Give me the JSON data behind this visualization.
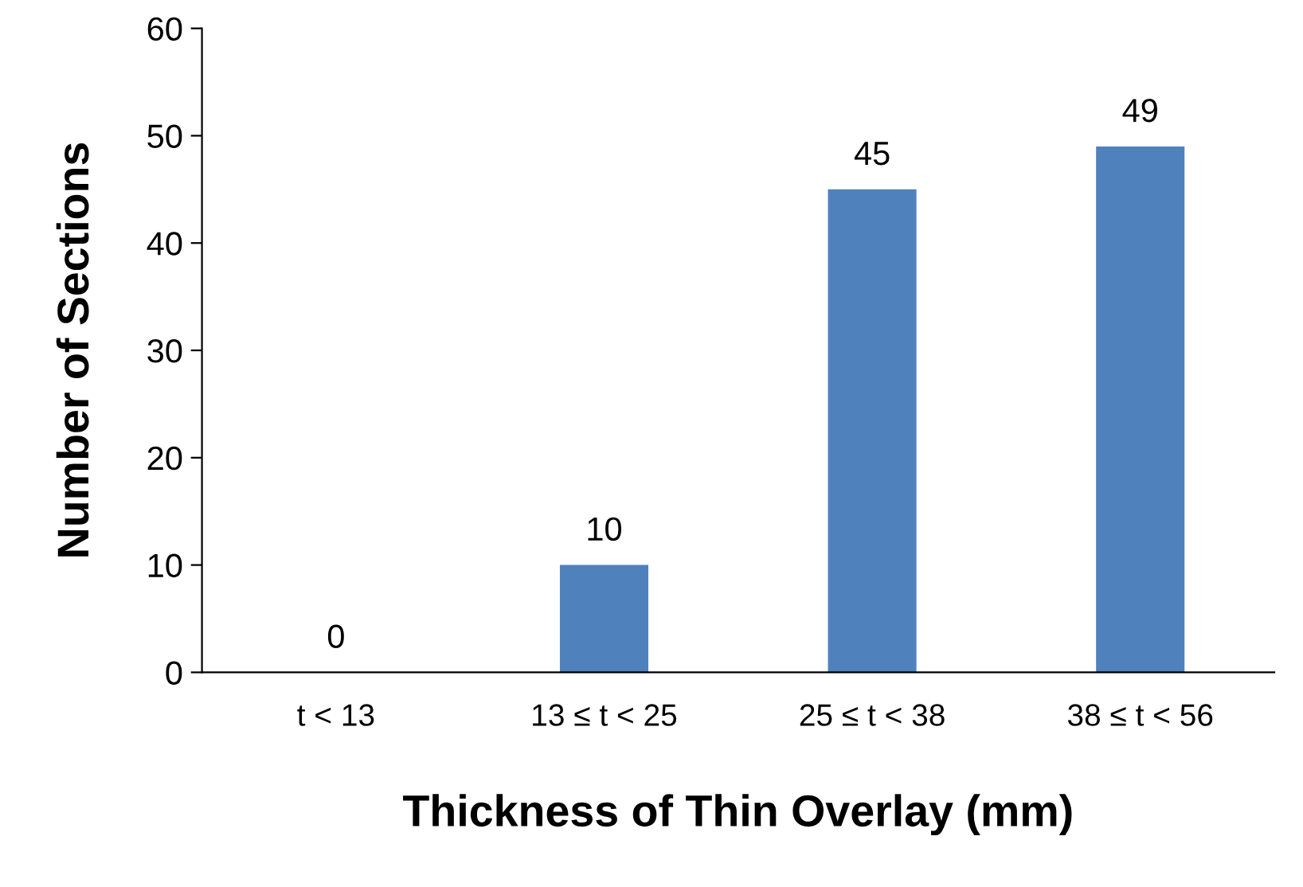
{
  "chart_data": {
    "type": "bar",
    "xlabel": "Thickness of Thin Overlay (mm)",
    "ylabel": "Number of Sections",
    "categories": [
      "t < 13",
      "13 ≤ t < 25",
      "25 ≤ t < 38",
      "38 ≤ t < 56"
    ],
    "values": [
      0,
      10,
      45,
      49
    ],
    "color": "#4f81bd",
    "ylim": [
      0,
      60
    ],
    "yticks": [
      0,
      10,
      20,
      30,
      40,
      50,
      60
    ],
    "data_labels": true,
    "grid": false,
    "legend": false
  }
}
